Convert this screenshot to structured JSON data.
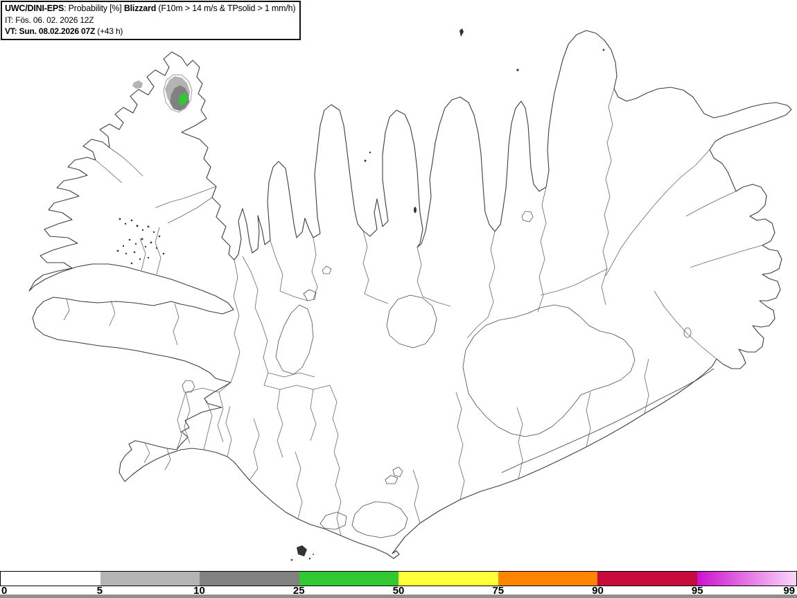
{
  "header": {
    "model": "UWC/DINI-EPS",
    "mid": ": Probability [%] ",
    "variable": "Blizzard",
    "criteria": " (F10m > 14 m/s & TPsolid > 1 mm/h)",
    "init_line": "IT: Fös. 06. 02. 2026 12Z",
    "valid_bold": "VT: Sun. 08.02.2026 07Z",
    "valid_lead": " (+43 h)"
  },
  "colorbar": {
    "ticks": [
      "0",
      "5",
      "10",
      "25",
      "50",
      "75",
      "90",
      "95",
      "99"
    ],
    "segments": [
      {
        "from": "0",
        "to": "5",
        "color": "#ffffff"
      },
      {
        "from": "5",
        "to": "10",
        "color": "#b4b4b4"
      },
      {
        "from": "10",
        "to": "25",
        "color": "#818181"
      },
      {
        "from": "25",
        "to": "50",
        "color": "#32c832"
      },
      {
        "from": "50",
        "to": "75",
        "color": "#ffff3a"
      },
      {
        "from": "75",
        "to": "90",
        "color": "#ff8500"
      },
      {
        "from": "90",
        "to": "95",
        "color": "#c60a3c"
      },
      {
        "from": "95",
        "to": "99",
        "gradient": true,
        "color_start": "#cc11cc",
        "color_end": "#fbd7fb"
      }
    ]
  },
  "map": {
    "region": "Iceland",
    "probability_patch": {
      "levels": [
        {
          "range": "5-10",
          "color": "#b4b4b4"
        },
        {
          "range": "10-25",
          "color": "#818181"
        },
        {
          "range": "25-50",
          "color": "#32c832"
        }
      ]
    }
  }
}
